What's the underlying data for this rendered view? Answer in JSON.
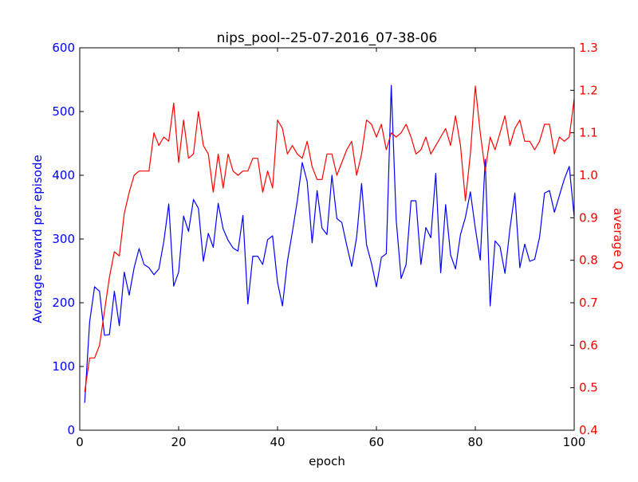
{
  "chart_data": {
    "type": "line",
    "title": "nips_pool--25-07-2016_07-38-06",
    "xlabel": "epoch",
    "ylabel": "Average reward per episode",
    "y2label": "average Q",
    "xlim": [
      0,
      100
    ],
    "ylim": [
      0,
      600
    ],
    "y2lim": [
      0.4,
      1.3
    ],
    "x_ticks": [
      0,
      20,
      40,
      60,
      80,
      100
    ],
    "y_ticks": [
      0,
      100,
      200,
      300,
      400,
      500,
      600
    ],
    "y2_ticks": [
      0.4,
      0.5,
      0.6,
      0.7,
      0.8,
      0.9,
      1.0,
      1.1,
      1.2,
      1.3
    ],
    "x_tick_labels": [
      "0",
      "20",
      "40",
      "60",
      "80",
      "100"
    ],
    "y_tick_labels": [
      "0",
      "100",
      "200",
      "300",
      "400",
      "500",
      "600"
    ],
    "y2_tick_labels": [
      "0.4",
      "0.5",
      "0.6",
      "0.7",
      "0.8",
      "0.9",
      "1.0",
      "1.1",
      "1.2",
      "1.3"
    ],
    "grid": false,
    "colors": {
      "reward": "#0000ff",
      "q": "#ff0000",
      "axes": "#000000"
    },
    "series": [
      {
        "axis": "left",
        "color": "#0000ff",
        "x": [
          1,
          2,
          3,
          4,
          5,
          6,
          7,
          8,
          9,
          10,
          11,
          12,
          13,
          14,
          15,
          16,
          17,
          18,
          19,
          20,
          21,
          22,
          23,
          24,
          25,
          26,
          27,
          28,
          29,
          30,
          31,
          32,
          33,
          34,
          35,
          36,
          37,
          38,
          39,
          40,
          41,
          42,
          43,
          44,
          45,
          46,
          47,
          48,
          49,
          50,
          51,
          52,
          53,
          54,
          55,
          56,
          57,
          58,
          59,
          60,
          61,
          62,
          63,
          64,
          65,
          66,
          67,
          68,
          69,
          70,
          71,
          72,
          73,
          74,
          75,
          76,
          77,
          78,
          79,
          80,
          81,
          82,
          83,
          84,
          85,
          86,
          87,
          88,
          89,
          90,
          91,
          92,
          93,
          94,
          95,
          96,
          97,
          98,
          99,
          100
        ],
        "values": [
          43,
          170,
          225,
          218,
          149,
          150,
          218,
          164,
          248,
          212,
          255,
          285,
          260,
          255,
          244,
          253,
          296,
          355,
          226,
          248,
          336,
          312,
          362,
          348,
          265,
          309,
          287,
          356,
          316,
          298,
          286,
          281,
          337,
          198,
          273,
          273,
          260,
          299,
          305,
          232,
          195,
          265,
          311,
          360,
          420,
          390,
          294,
          376,
          317,
          307,
          400,
          332,
          326,
          290,
          257,
          303,
          387,
          291,
          262,
          225,
          271,
          277,
          541,
          330,
          238,
          260,
          360,
          360,
          260,
          318,
          302,
          403,
          247,
          354,
          275,
          253,
          307,
          334,
          374,
          317,
          267,
          425,
          195,
          297,
          288,
          246,
          316,
          372,
          255,
          292,
          265,
          268,
          303,
          372,
          376,
          342,
          368,
          394,
          414,
          335
        ]
      },
      {
        "axis": "right",
        "color": "#ff0000",
        "x": [
          1,
          2,
          3,
          4,
          5,
          6,
          7,
          8,
          9,
          10,
          11,
          12,
          13,
          14,
          15,
          16,
          17,
          18,
          19,
          20,
          21,
          22,
          23,
          24,
          25,
          26,
          27,
          28,
          29,
          30,
          31,
          32,
          33,
          34,
          35,
          36,
          37,
          38,
          39,
          40,
          41,
          42,
          43,
          44,
          45,
          46,
          47,
          48,
          49,
          50,
          51,
          52,
          53,
          54,
          55,
          56,
          57,
          58,
          59,
          60,
          61,
          62,
          63,
          64,
          65,
          66,
          67,
          68,
          69,
          70,
          71,
          72,
          73,
          74,
          75,
          76,
          77,
          78,
          79,
          80,
          81,
          82,
          83,
          84,
          85,
          86,
          87,
          88,
          89,
          90,
          91,
          92,
          93,
          94,
          95,
          96,
          97,
          98,
          99,
          100
        ],
        "values": [
          0.49,
          0.57,
          0.57,
          0.6,
          0.68,
          0.76,
          0.82,
          0.81,
          0.91,
          0.96,
          1.0,
          1.01,
          1.01,
          1.01,
          1.1,
          1.07,
          1.09,
          1.08,
          1.17,
          1.03,
          1.13,
          1.04,
          1.05,
          1.15,
          1.07,
          1.05,
          0.96,
          1.05,
          0.97,
          1.05,
          1.01,
          1.0,
          1.01,
          1.01,
          1.04,
          1.04,
          0.96,
          1.01,
          0.97,
          1.13,
          1.11,
          1.05,
          1.07,
          1.05,
          1.04,
          1.08,
          1.02,
          0.99,
          0.99,
          1.05,
          1.05,
          1.0,
          1.03,
          1.06,
          1.08,
          1.0,
          1.05,
          1.13,
          1.12,
          1.09,
          1.12,
          1.06,
          1.1,
          1.09,
          1.1,
          1.12,
          1.09,
          1.05,
          1.06,
          1.09,
          1.05,
          1.07,
          1.09,
          1.11,
          1.07,
          1.14,
          1.07,
          0.94,
          1.05,
          1.21,
          1.1,
          1.01,
          1.09,
          1.06,
          1.1,
          1.14,
          1.07,
          1.11,
          1.13,
          1.08,
          1.08,
          1.06,
          1.08,
          1.12,
          1.12,
          1.05,
          1.09,
          1.08,
          1.09,
          1.18
        ]
      }
    ]
  }
}
